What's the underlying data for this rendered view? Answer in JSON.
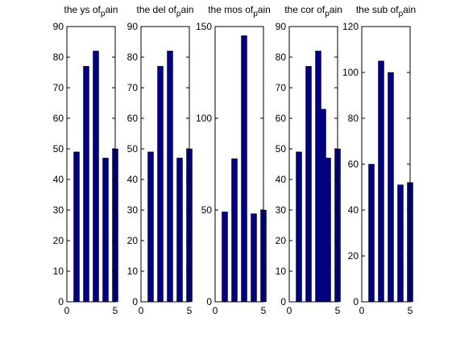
{
  "colors": {
    "bar": "#000080",
    "axis": "#000000",
    "background": "#ffffff"
  },
  "chart_data": [
    {
      "type": "bar",
      "title": "the ys of",
      "title_sub": "p",
      "title_end": "ain",
      "x": [
        1,
        2,
        3,
        4,
        5
      ],
      "values": [
        49,
        77,
        82,
        47,
        50
      ],
      "xlim": [
        0,
        5
      ],
      "ylim": [
        0,
        90
      ],
      "xticks": [
        0,
        5
      ],
      "yticks": [
        0,
        10,
        20,
        30,
        40,
        50,
        60,
        70,
        80,
        90
      ],
      "grid": false
    },
    {
      "type": "bar",
      "title": "the del of",
      "title_sub": "p",
      "title_end": "ain",
      "x": [
        1,
        2,
        3,
        4,
        5
      ],
      "values": [
        49,
        77,
        82,
        47,
        50
      ],
      "xlim": [
        0,
        5
      ],
      "ylim": [
        0,
        90
      ],
      "xticks": [
        0,
        5
      ],
      "yticks": [
        0,
        10,
        20,
        30,
        40,
        50,
        60,
        70,
        80,
        90
      ],
      "grid": false
    },
    {
      "type": "bar",
      "title": "the mos of",
      "title_sub": "p",
      "title_end": "ain",
      "x": [
        1,
        2,
        3,
        4,
        5
      ],
      "values": [
        49,
        78,
        145,
        48,
        50
      ],
      "xlim": [
        0,
        5
      ],
      "ylim": [
        0,
        150
      ],
      "xticks": [
        0,
        5
      ],
      "yticks": [
        0,
        50,
        100,
        150
      ],
      "grid": false
    },
    {
      "type": "bar",
      "title": "the cor of",
      "title_sub": "p",
      "title_end": "ain",
      "x": [
        1,
        2,
        3,
        3.5,
        4,
        5
      ],
      "values": [
        49,
        77,
        82,
        63,
        47,
        50
      ],
      "xlim": [
        0,
        5
      ],
      "ylim": [
        0,
        90
      ],
      "xticks": [
        0,
        5
      ],
      "yticks": [
        0,
        10,
        20,
        30,
        40,
        50,
        60,
        70,
        80,
        90
      ],
      "grid": false
    },
    {
      "type": "bar",
      "title": "the sub of",
      "title_sub": "p",
      "title_end": "ain",
      "x": [
        1,
        2,
        3,
        4,
        5
      ],
      "values": [
        60,
        105,
        100,
        51,
        52
      ],
      "xlim": [
        0,
        5
      ],
      "ylim": [
        0,
        120
      ],
      "xticks": [
        0,
        5
      ],
      "yticks": [
        0,
        20,
        40,
        60,
        80,
        100,
        120
      ],
      "grid": false
    }
  ]
}
